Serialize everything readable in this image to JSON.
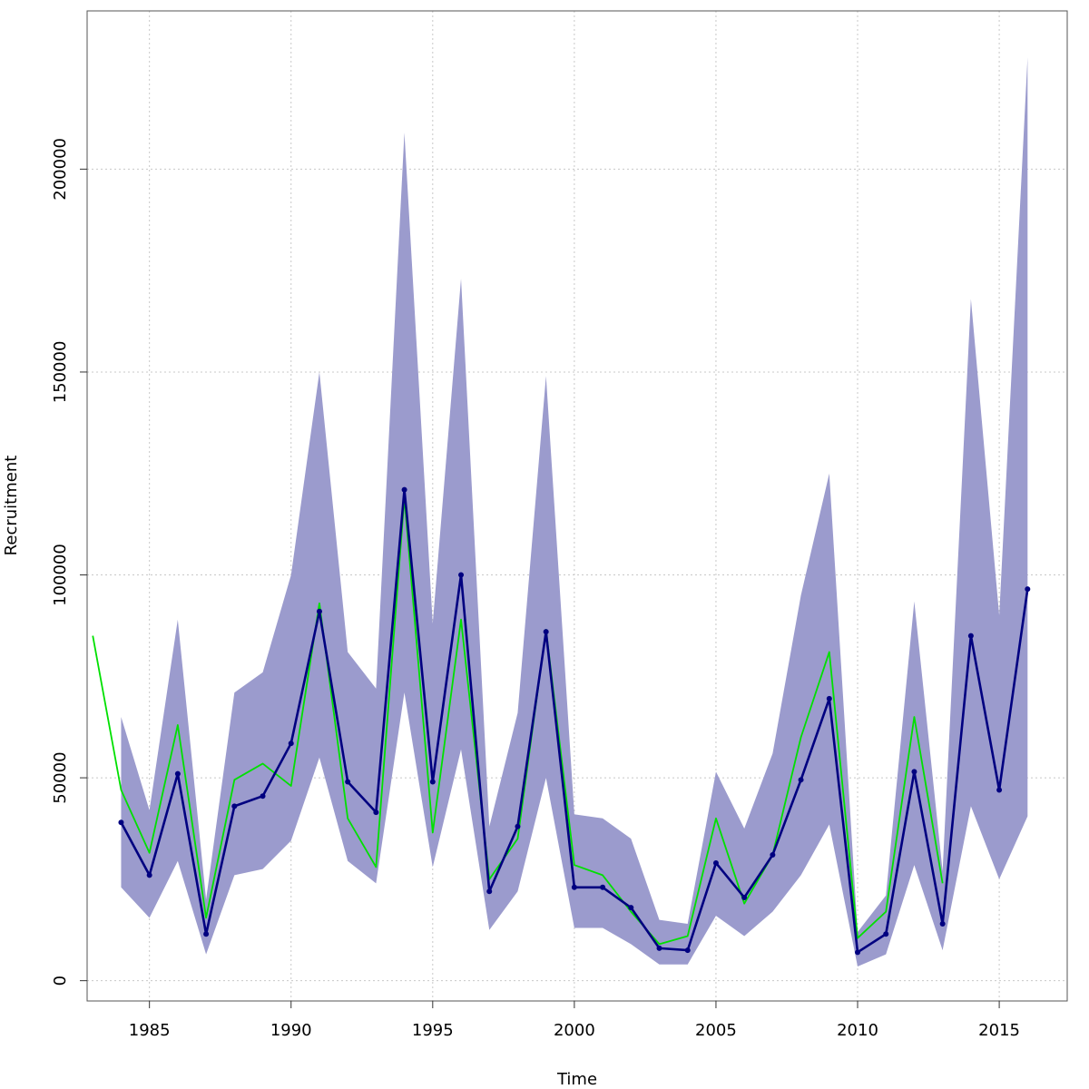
{
  "chart_data": {
    "type": "line",
    "title": "",
    "xlabel": "Time",
    "ylabel": "Recruitment",
    "xlim": [
      1982.8,
      2017.4
    ],
    "ylim": [
      -5000,
      239000
    ],
    "grid": true,
    "x_ticks": [
      "1985",
      "1990",
      "1995",
      "2000",
      "2005",
      "2010",
      "2015"
    ],
    "x_tick_values": [
      1985,
      1990,
      1995,
      2000,
      2005,
      2010,
      2015
    ],
    "y_ticks": [
      "0",
      "50000",
      "100000",
      "150000",
      "200000"
    ],
    "y_tick_values": [
      0,
      50000,
      100000,
      150000,
      200000
    ],
    "interval": {
      "x": [
        1984,
        1985,
        1986,
        1987,
        1988,
        1989,
        1990,
        1991,
        1992,
        1993,
        1994,
        1995,
        1996,
        1997,
        1998,
        1999,
        2000,
        2001,
        2002,
        2003,
        2004,
        2005,
        2006,
        2007,
        2008,
        2009,
        2010,
        2011,
        2012,
        2013,
        2014,
        2015,
        2016
      ],
      "lower": [
        23000,
        15500,
        29500,
        6500,
        26000,
        27500,
        34500,
        55000,
        29500,
        24000,
        71000,
        28000,
        57000,
        12500,
        22000,
        50000,
        13000,
        13000,
        9000,
        4000,
        4000,
        16000,
        11000,
        17000,
        26000,
        38500,
        3500,
        6500,
        28500,
        7500,
        43000,
        25000,
        40500
      ],
      "upper": [
        65000,
        42000,
        89000,
        20000,
        71000,
        76000,
        100000,
        150000,
        81000,
        72000,
        209000,
        88000,
        173000,
        38000,
        66000,
        149000,
        41000,
        40000,
        35000,
        15000,
        14000,
        51500,
        37500,
        56000,
        95000,
        125000,
        12000,
        21000,
        93500,
        27000,
        168000,
        90000,
        227500
      ],
      "color": "#9b9bcd"
    },
    "series": [
      {
        "x": [
          1984,
          1985,
          1986,
          1987,
          1988,
          1989,
          1990,
          1991,
          1992,
          1993,
          1994,
          1995,
          1996,
          1997,
          1998,
          1999,
          2000,
          2001,
          2002,
          2003,
          2004,
          2005,
          2006,
          2007,
          2008,
          2009,
          2010,
          2011,
          2012,
          2013,
          2014,
          2015,
          2016
        ],
        "values": [
          39000,
          26000,
          51000,
          11500,
          43000,
          45500,
          58500,
          91000,
          49000,
          41500,
          121000,
          49000,
          100000,
          22000,
          38000,
          86000,
          23000,
          23000,
          18000,
          8000,
          7500,
          29000,
          20500,
          31000,
          49500,
          69500,
          7000,
          11500,
          51500,
          14000,
          85000,
          47000,
          96500
        ],
        "color": "#000080",
        "markers": true
      },
      {
        "x": [
          1983,
          1984,
          1985,
          1986,
          1987,
          1988,
          1989,
          1990,
          1991,
          1992,
          1993,
          1994,
          1995,
          1996,
          1997,
          1998,
          1999,
          2000,
          2001,
          2002,
          2003,
          2004,
          2005,
          2006,
          2007,
          2008,
          2009,
          2010,
          2011,
          2012,
          2013
        ],
        "values": [
          85000,
          47000,
          31500,
          63000,
          15500,
          49500,
          53500,
          48000,
          93000,
          40000,
          28000,
          119000,
          36500,
          89000,
          25000,
          35000,
          86500,
          28500,
          26000,
          17000,
          9000,
          11000,
          40000,
          19000,
          31000,
          60000,
          81000,
          10500,
          17000,
          65000,
          24000
        ],
        "color": "#00e000",
        "markers": false
      }
    ]
  }
}
